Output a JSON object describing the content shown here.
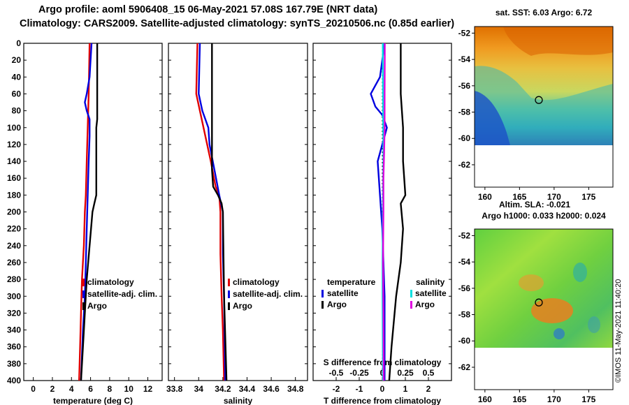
{
  "titles": {
    "line1": "Argo profile: aoml 5906408_15 06-May-2021 57.08S 167.79E (NRT data)",
    "line2": "Climatology: CARS2009. Satellite-adjusted climatology: synTS_20210506.nc (0.85d earlier)"
  },
  "depth_ticks": [
    "0",
    "20",
    "40",
    "60",
    "80",
    "100",
    "120",
    "140",
    "160",
    "180",
    "200",
    "220",
    "240",
    "260",
    "280",
    "300",
    "320",
    "340",
    "360",
    "380",
    "400"
  ],
  "colors": {
    "argo": "#000000",
    "climatology": "#e00000",
    "satellite": "#0000e0",
    "cyan": "#00e0e0",
    "magenta": "#e000e0"
  },
  "chart_data": [
    {
      "type": "line",
      "title": "",
      "xlabel": "temperature (deg C)",
      "ylabel": "depth",
      "xlim": [
        -1,
        13.5
      ],
      "ylim": [
        400,
        0
      ],
      "xticks": [
        "0",
        "2",
        "4",
        "6",
        "8",
        "10",
        "12"
      ],
      "legend": [
        "climatology",
        "satellite-adj. clim.",
        "Argo"
      ],
      "series": [
        {
          "name": "climatology",
          "color": "#e00000",
          "depth": [
            0,
            60,
            100,
            140,
            180,
            200,
            240,
            280,
            320,
            360,
            400
          ],
          "values": [
            5.9,
            5.8,
            5.7,
            5.6,
            5.5,
            5.4,
            5.3,
            5.1,
            5.0,
            4.9,
            4.8
          ]
        },
        {
          "name": "satellite-adj. clim.",
          "color": "#0000e0",
          "depth": [
            0,
            40,
            60,
            70,
            80,
            90,
            110,
            140,
            180,
            220,
            260,
            300,
            340,
            400
          ],
          "values": [
            6.1,
            5.9,
            5.6,
            5.4,
            5.6,
            5.9,
            5.9,
            5.8,
            5.7,
            5.6,
            5.5,
            5.4,
            5.2,
            5.0
          ]
        },
        {
          "name": "Argo",
          "color": "#000000",
          "depth": [
            0,
            90,
            100,
            180,
            190,
            200,
            240,
            280,
            320,
            360,
            400
          ],
          "values": [
            6.7,
            6.7,
            6.6,
            6.6,
            6.4,
            6.2,
            5.9,
            5.6,
            5.4,
            5.2,
            5.0
          ]
        }
      ]
    },
    {
      "type": "line",
      "title": "",
      "xlabel": "salinity",
      "ylabel": "depth",
      "xlim": [
        33.75,
        34.9
      ],
      "ylim": [
        400,
        0
      ],
      "xticks": [
        "33.8",
        "34",
        "34.2",
        "34.4",
        "34.6",
        "34.8"
      ],
      "legend": [
        "climatology",
        "satellite-adj. clim.",
        "Argo"
      ],
      "series": [
        {
          "name": "climatology",
          "color": "#e00000",
          "depth": [
            0,
            60,
            80,
            100,
            140,
            170,
            180,
            200,
            250,
            300,
            340,
            400
          ],
          "values": [
            33.99,
            33.98,
            34.01,
            34.04,
            34.1,
            34.14,
            34.17,
            34.18,
            34.18,
            34.19,
            34.2,
            34.21
          ]
        },
        {
          "name": "satellite-adj. clim.",
          "color": "#0000e0",
          "depth": [
            0,
            60,
            80,
            100,
            120,
            150,
            180,
            200,
            250,
            300,
            400
          ],
          "values": [
            34.01,
            34.0,
            34.03,
            34.08,
            34.09,
            34.13,
            34.17,
            34.2,
            34.2,
            34.21,
            34.22
          ]
        },
        {
          "name": "Argo",
          "color": "#000000",
          "depth": [
            0,
            150,
            170,
            180,
            190,
            200,
            300,
            400
          ],
          "values": [
            34.11,
            34.11,
            34.12,
            34.16,
            34.19,
            34.2,
            34.21,
            34.23
          ]
        }
      ]
    },
    {
      "type": "line",
      "title": "",
      "xlabel": "T difference from climatology",
      "x2label": "S difference from climatology",
      "ylabel": "depth",
      "xlim": [
        -3,
        3
      ],
      "ylim": [
        400,
        0
      ],
      "xticks": [
        "-2",
        "-1",
        "0",
        "1",
        "2"
      ],
      "x2ticks": [
        "-0.5",
        "-0.25",
        "0",
        "0.25",
        "0.5"
      ],
      "legend_left_title": "temperature",
      "legend_right_title": "salinity",
      "legend_left": [
        "satellite",
        "Argo"
      ],
      "legend_right": [
        "satellite",
        "Argo"
      ],
      "series": [
        {
          "name": "temperature satellite",
          "color": "#0000e0",
          "depth": [
            0,
            40,
            60,
            75,
            85,
            100,
            140,
            180,
            220,
            260,
            300,
            360,
            400
          ],
          "values": [
            0.1,
            -0.1,
            -0.5,
            -0.3,
            0.0,
            0.2,
            -0.2,
            -0.1,
            0.0,
            0.05,
            0.1,
            0.1,
            0.1
          ]
        },
        {
          "name": "temperature Argo",
          "color": "#000000",
          "depth": [
            0,
            60,
            100,
            140,
            180,
            190,
            220,
            260,
            300,
            360,
            400
          ],
          "values": [
            0.8,
            0.8,
            0.9,
            0.9,
            1.0,
            0.8,
            0.9,
            0.8,
            0.6,
            0.4,
            0.3
          ]
        },
        {
          "name": "salinity satellite",
          "color": "#00e0e0",
          "depth": [
            0,
            60,
            100,
            140,
            180,
            220,
            260,
            300,
            360,
            400
          ],
          "values": [
            0.02,
            0.03,
            0.04,
            0.05,
            0.03,
            0.02,
            0.01,
            0.01,
            0.02,
            0.03
          ]
        },
        {
          "name": "salinity Argo",
          "color": "#e000e0",
          "depth": [
            0,
            60,
            100,
            130,
            160,
            180,
            200,
            260,
            320,
            400
          ],
          "values": [
            0.11,
            0.1,
            0.1,
            0.08,
            0.05,
            0.05,
            0.05,
            0.03,
            0.05,
            0.06
          ]
        }
      ]
    }
  ],
  "maps": [
    {
      "title": "sat. SST: 6.03 Argo: 6.72",
      "type": "sst",
      "yticks": [
        "-52",
        "-54",
        "-56",
        "-58",
        "-60",
        "-62"
      ],
      "xticks": [
        "160",
        "165",
        "170",
        "175"
      ]
    },
    {
      "title": "Altim. SLA: -0.021",
      "subtitle": "Argo h1000: 0.033 h2000: 0.024",
      "type": "sla",
      "yticks": [
        "-52",
        "-54",
        "-56",
        "-58",
        "-60",
        "-62"
      ],
      "xticks": [
        "160",
        "165",
        "170",
        "175"
      ]
    }
  ],
  "sidebar": {
    "credit": "©IMOS 11-May-2021 11:40:20"
  }
}
